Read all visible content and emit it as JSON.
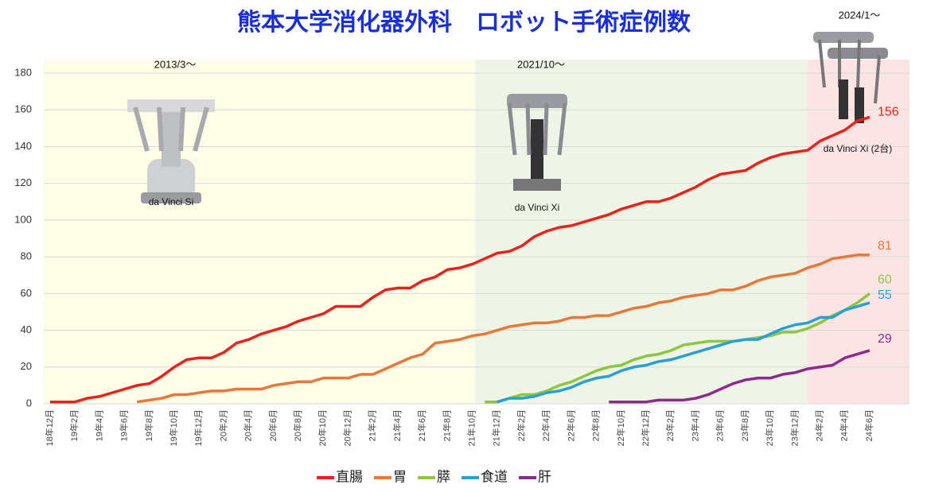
{
  "chart_data": {
    "type": "line",
    "title": "熊本大学消化器外科　ロボット手術症例数",
    "periods": [
      {
        "label": "2013/3〜",
        "model": "da Vinci Si",
        "color": "#fdfde8"
      },
      {
        "label": "2021/10〜",
        "model": "da Vinci Xi",
        "color": "#eef5e6"
      },
      {
        "label": "2024/1〜",
        "model": "da Vinci Xi (2台)",
        "color": "#fde4e4"
      }
    ],
    "categories": [
      "18年12月",
      null,
      "19年2月",
      null,
      "19年4月",
      null,
      "19年6月",
      null,
      "19年8月",
      null,
      "19年10月",
      null,
      "19年12月",
      null,
      "20年2月",
      null,
      "20年4月",
      null,
      "20年6月",
      null,
      "20年8月",
      null,
      "20年10月",
      null,
      "20年12月",
      null,
      "21年2月",
      null,
      "21年4月",
      null,
      "21年6月",
      null,
      "21年8月",
      null,
      "21年10月",
      null,
      "21年12月",
      null,
      "22年2月",
      null,
      "22年4月",
      null,
      "22年6月",
      null,
      "22年8月",
      null,
      "22年10月",
      null,
      "22年12月",
      null,
      "23年2月",
      null,
      "23年4月",
      null,
      "23年6月",
      null,
      "23年8月",
      null,
      "23年10月",
      null,
      "23年12月",
      null,
      "24年2月",
      null,
      "24年4月",
      null,
      "24年6月"
    ],
    "series": [
      {
        "name": "直腸",
        "color": "#e8231b",
        "values": [
          1,
          1,
          1,
          3,
          4,
          6,
          8,
          10,
          11,
          15,
          20,
          24,
          25,
          25,
          28,
          33,
          35,
          38,
          40,
          42,
          45,
          47,
          49,
          53,
          53,
          53,
          58,
          62,
          63,
          63,
          67,
          69,
          73,
          74,
          76,
          79,
          82,
          83,
          86,
          91,
          94,
          96,
          97,
          99,
          101,
          103,
          106,
          108,
          110,
          110,
          112,
          115,
          118,
          122,
          125,
          126,
          127,
          131,
          134,
          136,
          137,
          138,
          143,
          146,
          149,
          154,
          156
        ]
      },
      {
        "name": "胃",
        "color": "#e8783a",
        "values": [
          null,
          null,
          null,
          null,
          null,
          null,
          null,
          1,
          2,
          3,
          5,
          5,
          6,
          7,
          7,
          8,
          8,
          8,
          10,
          11,
          12,
          12,
          14,
          14,
          14,
          16,
          16,
          19,
          22,
          25,
          27,
          33,
          34,
          35,
          37,
          38,
          40,
          42,
          43,
          44,
          44,
          45,
          47,
          47,
          48,
          48,
          50,
          52,
          53,
          55,
          56,
          58,
          59,
          60,
          62,
          62,
          64,
          67,
          69,
          70,
          71,
          74,
          76,
          79,
          80,
          81,
          81
        ]
      },
      {
        "name": "膵",
        "color": "#8dc63f",
        "values": [
          null,
          null,
          null,
          null,
          null,
          null,
          null,
          null,
          null,
          null,
          null,
          null,
          null,
          null,
          null,
          null,
          null,
          null,
          null,
          null,
          null,
          null,
          null,
          null,
          null,
          null,
          null,
          null,
          null,
          null,
          null,
          null,
          null,
          null,
          null,
          1,
          1,
          3,
          5,
          5,
          7,
          10,
          12,
          15,
          18,
          20,
          21,
          24,
          26,
          27,
          29,
          32,
          33,
          34,
          34,
          34,
          35,
          36,
          37,
          39,
          39,
          41,
          44,
          48,
          51,
          55,
          60
        ]
      },
      {
        "name": "食道",
        "color": "#2a9fd6",
        "values": [
          null,
          null,
          null,
          null,
          null,
          null,
          null,
          null,
          null,
          null,
          null,
          null,
          null,
          null,
          null,
          null,
          null,
          null,
          null,
          null,
          null,
          null,
          null,
          null,
          null,
          null,
          null,
          null,
          null,
          null,
          null,
          null,
          null,
          null,
          null,
          null,
          1,
          3,
          3,
          4,
          6,
          7,
          9,
          12,
          14,
          15,
          18,
          20,
          21,
          23,
          24,
          26,
          28,
          30,
          32,
          34,
          35,
          35,
          38,
          41,
          43,
          44,
          47,
          47,
          51,
          53,
          55
        ]
      },
      {
        "name": "肝",
        "color": "#8e2a8e",
        "values": [
          null,
          null,
          null,
          null,
          null,
          null,
          null,
          null,
          null,
          null,
          null,
          null,
          null,
          null,
          null,
          null,
          null,
          null,
          null,
          null,
          null,
          null,
          null,
          null,
          null,
          null,
          null,
          null,
          null,
          null,
          null,
          null,
          null,
          null,
          null,
          null,
          null,
          null,
          null,
          null,
          null,
          null,
          null,
          null,
          null,
          1,
          1,
          1,
          1,
          2,
          2,
          2,
          3,
          5,
          8,
          11,
          13,
          14,
          14,
          16,
          17,
          19,
          20,
          21,
          25,
          27,
          29
        ]
      }
    ],
    "ylim": [
      0,
      180
    ],
    "yticks": [
      0,
      20,
      40,
      60,
      80,
      100,
      120,
      140,
      160,
      180
    ],
    "grid": true,
    "legend": "bottom"
  }
}
